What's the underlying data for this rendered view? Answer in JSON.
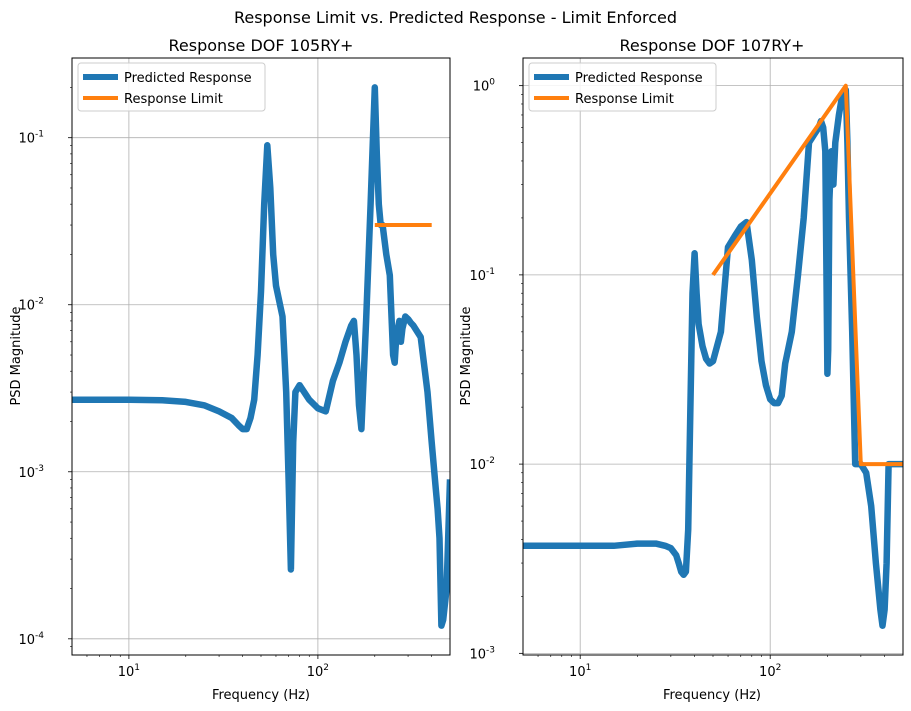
{
  "figure": {
    "suptitle": "Response Limit vs. Predicted Response - Limit Enforced"
  },
  "colors": {
    "predicted": "#1f77b4",
    "limit": "#ff7f0e",
    "grid": "#b0b0b0"
  },
  "chart_data": [
    {
      "type": "line",
      "title": "Response DOF 105RY+",
      "xlabel": "Frequency (Hz)",
      "ylabel": "PSD Magnitude",
      "xscale": "log",
      "yscale": "log",
      "xlim": [
        5,
        500
      ],
      "ylim": [
        8e-05,
        0.3
      ],
      "xticks": [
        {
          "value": 10,
          "label": "10^1"
        },
        {
          "value": 100,
          "label": "10^2"
        }
      ],
      "yticks": [
        {
          "value": 0.0001,
          "label": "10^-4"
        },
        {
          "value": 0.001,
          "label": "10^-3"
        },
        {
          "value": 0.01,
          "label": "10^-2"
        },
        {
          "value": 0.1,
          "label": "10^-1"
        }
      ],
      "grid": true,
      "legend": "top-left",
      "series": [
        {
          "name": "Predicted Response",
          "x": [
            5,
            10,
            15,
            20,
            25,
            30,
            35,
            38,
            40,
            42,
            44,
            46,
            48,
            50,
            52,
            54,
            56,
            58,
            60,
            65,
            68,
            70,
            72,
            74,
            76,
            80,
            90,
            100,
            110,
            111,
            120,
            130,
            140,
            150,
            155,
            160,
            165,
            170,
            180,
            190,
            195,
            200,
            205,
            210,
            215,
            220,
            230,
            240,
            250,
            255,
            260,
            270,
            275,
            280,
            290,
            300,
            310,
            320,
            350,
            380,
            400,
            420,
            430,
            440,
            450,
            460,
            480,
            500
          ],
          "y": [
            0.0027,
            0.0027,
            0.00268,
            0.00262,
            0.0025,
            0.0023,
            0.0021,
            0.0019,
            0.0018,
            0.0018,
            0.0021,
            0.0027,
            0.005,
            0.012,
            0.04,
            0.09,
            0.05,
            0.02,
            0.013,
            0.0085,
            0.003,
            0.0009,
            0.00026,
            0.0015,
            0.003,
            0.0033,
            0.0027,
            0.0024,
            0.0023,
            0.0024,
            0.0035,
            0.0045,
            0.006,
            0.0075,
            0.008,
            0.005,
            0.0025,
            0.0018,
            0.008,
            0.04,
            0.09,
            0.2,
            0.08,
            0.04,
            0.03,
            0.03,
            0.02,
            0.015,
            0.005,
            0.0045,
            0.0065,
            0.008,
            0.006,
            0.0072,
            0.0085,
            0.0082,
            0.0078,
            0.0075,
            0.0064,
            0.003,
            0.0015,
            0.0008,
            0.0006,
            0.0004,
            0.00012,
            0.00013,
            0.0002,
            0.0009
          ]
        },
        {
          "name": "Response Limit",
          "x": [
            200,
            400
          ],
          "y": [
            0.03,
            0.03
          ]
        }
      ]
    },
    {
      "type": "line",
      "title": "Response DOF 107RY+",
      "xlabel": "Frequency (Hz)",
      "ylabel": "PSD Magnitude",
      "xscale": "log",
      "yscale": "log",
      "xlim": [
        5,
        500
      ],
      "ylim": [
        0.00098,
        1.4
      ],
      "xticks": [
        {
          "value": 10,
          "label": "10^1"
        },
        {
          "value": 100,
          "label": "10^2"
        }
      ],
      "yticks": [
        {
          "value": 0.001,
          "label": "10^-3"
        },
        {
          "value": 0.01,
          "label": "10^-2"
        },
        {
          "value": 0.1,
          "label": "10^-1"
        },
        {
          "value": 1,
          "label": "10^0"
        }
      ],
      "grid": true,
      "legend": "top-left",
      "series": [
        {
          "name": "Predicted Response",
          "x": [
            5,
            10,
            15,
            20,
            25,
            28,
            30,
            32,
            33,
            34,
            35,
            36,
            37,
            38,
            39,
            40,
            41,
            42,
            44,
            46,
            48,
            50,
            55,
            60,
            65,
            70,
            75,
            80,
            85,
            90,
            95,
            100,
            105,
            110,
            115,
            120,
            130,
            140,
            150,
            160,
            170,
            180,
            185,
            190,
            195,
            200,
            202,
            205,
            210,
            215,
            220,
            230,
            240,
            250,
            255,
            260,
            270,
            280,
            285,
            290,
            300,
            320,
            340,
            360,
            380,
            390,
            400,
            410,
            420,
            430,
            440,
            450,
            460,
            480,
            500
          ],
          "y": [
            0.0037,
            0.0037,
            0.0037,
            0.0038,
            0.0038,
            0.0037,
            0.0036,
            0.0033,
            0.003,
            0.0027,
            0.0026,
            0.0027,
            0.0045,
            0.02,
            0.08,
            0.13,
            0.08,
            0.055,
            0.042,
            0.036,
            0.034,
            0.035,
            0.05,
            0.14,
            0.16,
            0.18,
            0.19,
            0.12,
            0.06,
            0.035,
            0.026,
            0.022,
            0.021,
            0.021,
            0.023,
            0.034,
            0.05,
            0.1,
            0.2,
            0.5,
            0.55,
            0.6,
            0.65,
            0.6,
            0.45,
            0.03,
            0.04,
            0.25,
            0.45,
            0.3,
            0.5,
            0.7,
            0.9,
            0.95,
            0.5,
            0.2,
            0.05,
            0.01,
            0.01,
            0.01,
            0.01,
            0.009,
            0.006,
            0.003,
            0.0017,
            0.0014,
            0.0017,
            0.003,
            0.01,
            0.01,
            0.01,
            0.01,
            0.01,
            0.01,
            0.01
          ]
        },
        {
          "name": "Response Limit",
          "x": [
            50,
            250,
            300,
            500
          ],
          "y": [
            0.1,
            1.0,
            0.01,
            0.01
          ]
        }
      ]
    }
  ]
}
